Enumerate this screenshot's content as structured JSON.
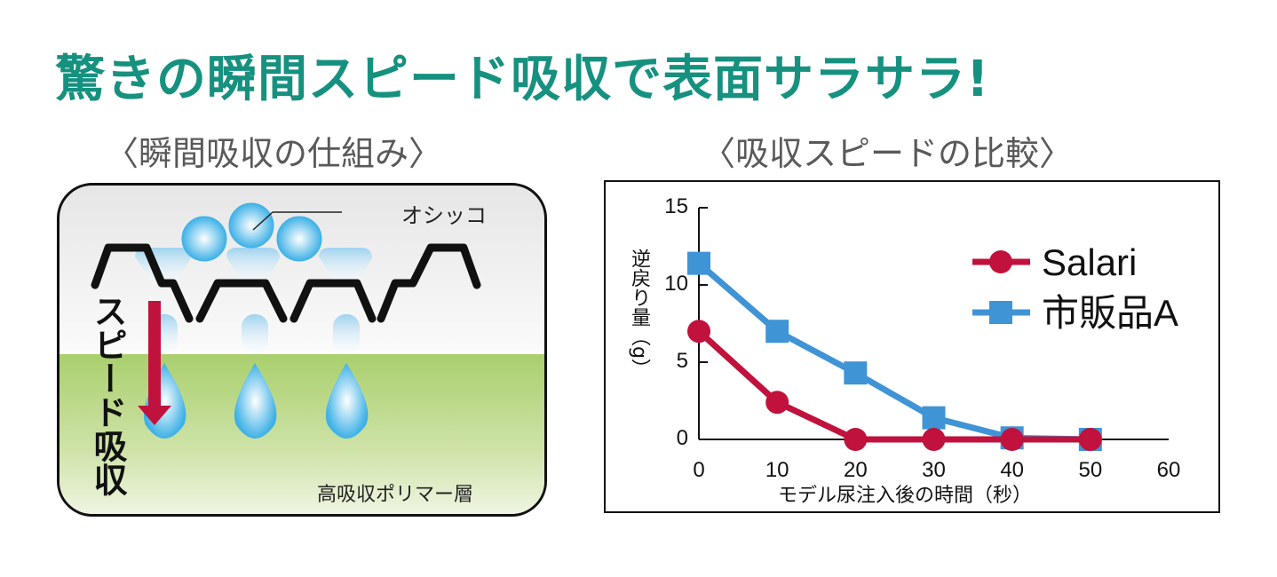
{
  "title": "驚きの瞬間スピード吸収で表面サラサラ!",
  "left_panel": {
    "heading": "〈瞬間吸収の仕組み〉",
    "pee_label": "オシッコ",
    "speed_label": "スピード吸収",
    "layer_label": "高吸収ポリマー層"
  },
  "right_panel": {
    "heading": "〈吸収スピードの比較〉"
  },
  "chart_data": {
    "type": "line",
    "title": "吸収スピードの比較",
    "xlabel": "モデル尿注入後の時間（秒）",
    "ylabel": "逆戻り量（g）",
    "x": [
      0,
      10,
      20,
      30,
      40,
      50
    ],
    "xlim": [
      0,
      60
    ],
    "ylim": [
      0,
      15
    ],
    "xticks": [
      "0",
      "10",
      "20",
      "30",
      "40",
      "50",
      "60"
    ],
    "yticks": [
      "0",
      "5",
      "10",
      "15"
    ],
    "grid": false,
    "legend_position": "top-right",
    "series": [
      {
        "name": "Salari",
        "color": "#c0123c",
        "marker": "circle",
        "values": [
          7.0,
          2.4,
          0,
          0,
          0,
          0
        ]
      },
      {
        "name": "市販品A",
        "color": "#3f94d6",
        "marker": "square",
        "values": [
          11.4,
          7.0,
          4.3,
          1.4,
          0.1,
          0
        ]
      }
    ]
  }
}
